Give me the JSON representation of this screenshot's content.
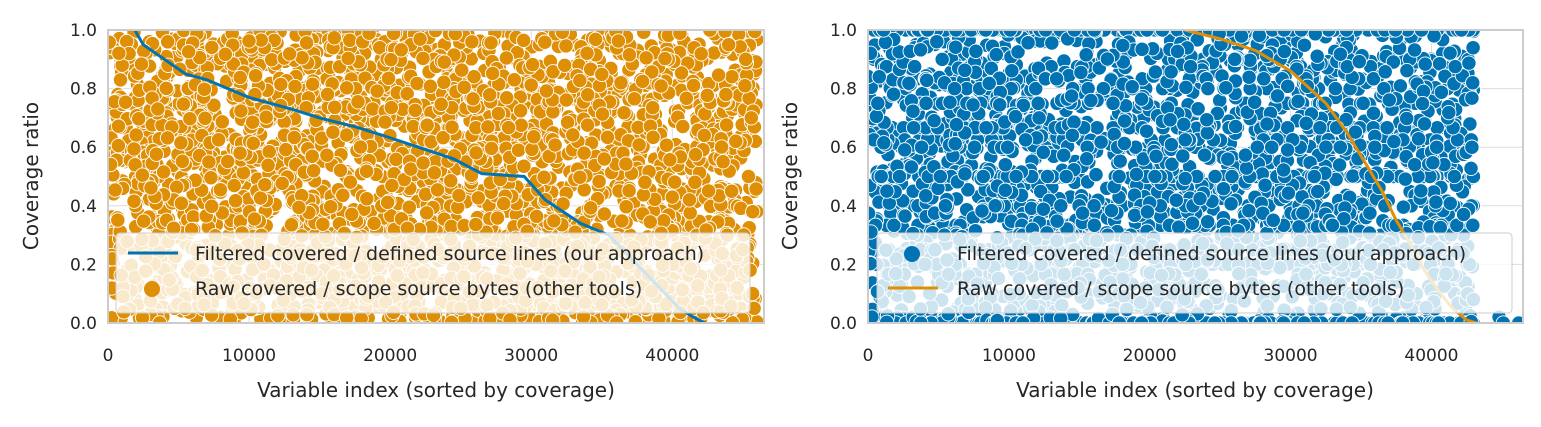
{
  "chart_data": [
    {
      "type": "scatter",
      "xlabel": "Variable index (sorted by coverage)",
      "ylabel": "Coverage ratio",
      "xlim": [
        0,
        46500
      ],
      "ylim": [
        0,
        1
      ],
      "xticks": [
        "0",
        "10000",
        "20000",
        "30000",
        "40000"
      ],
      "yticks": [
        "0.0",
        "0.2",
        "0.4",
        "0.6",
        "0.8",
        "1.0"
      ],
      "grid": true,
      "legend_position": "lower-left",
      "series": [
        {
          "name": "Filtered covered / defined source lines (our approach)",
          "kind": "line",
          "color": "#0173b2",
          "x": [
            1900,
            2500,
            4000,
            5500,
            7000,
            8500,
            10000,
            11500,
            13000,
            15000,
            17500,
            19500,
            22000,
            24500,
            26500,
            29500,
            31000,
            33500,
            35500,
            36500,
            37500,
            38500,
            39500,
            40500,
            41500,
            42300
          ],
          "y": [
            1.0,
            0.95,
            0.9,
            0.85,
            0.83,
            0.8,
            0.77,
            0.75,
            0.73,
            0.7,
            0.67,
            0.64,
            0.6,
            0.56,
            0.51,
            0.5,
            0.42,
            0.34,
            0.3,
            0.25,
            0.2,
            0.15,
            0.1,
            0.05,
            0.02,
            0.0
          ]
        },
        {
          "name": "Raw covered / scope source bytes (other tools)",
          "kind": "scatter",
          "color": "#de8f05",
          "x_range": [
            0,
            46000
          ],
          "y_range": [
            0,
            1
          ],
          "count": 46000
        }
      ]
    },
    {
      "type": "scatter",
      "xlabel": "Variable index (sorted by coverage)",
      "ylabel": "Coverage ratio",
      "xlim": [
        0,
        46500
      ],
      "ylim": [
        0,
        1
      ],
      "xticks": [
        "0",
        "10000",
        "20000",
        "30000",
        "40000"
      ],
      "yticks": [
        "0.0",
        "0.2",
        "0.4",
        "0.6",
        "0.8",
        "1.0"
      ],
      "grid": true,
      "legend_position": "lower-left",
      "series": [
        {
          "name": "Filtered covered / defined source lines (our approach)",
          "kind": "scatter",
          "color": "#0173b2",
          "x_range": [
            0,
            43000
          ],
          "y_range": [
            0,
            1
          ],
          "count": 46000
        },
        {
          "name": "Raw covered / scope source bytes (other tools)",
          "kind": "line",
          "color": "#de8f05",
          "x": [
            22500,
            25000,
            27500,
            30000,
            32500,
            34000,
            35500,
            36500,
            37500,
            38500,
            39500,
            40500,
            41500,
            42500,
            43200
          ],
          "y": [
            1.0,
            0.97,
            0.93,
            0.86,
            0.75,
            0.65,
            0.53,
            0.45,
            0.35,
            0.27,
            0.18,
            0.11,
            0.05,
            0.01,
            0.0
          ]
        }
      ]
    }
  ]
}
